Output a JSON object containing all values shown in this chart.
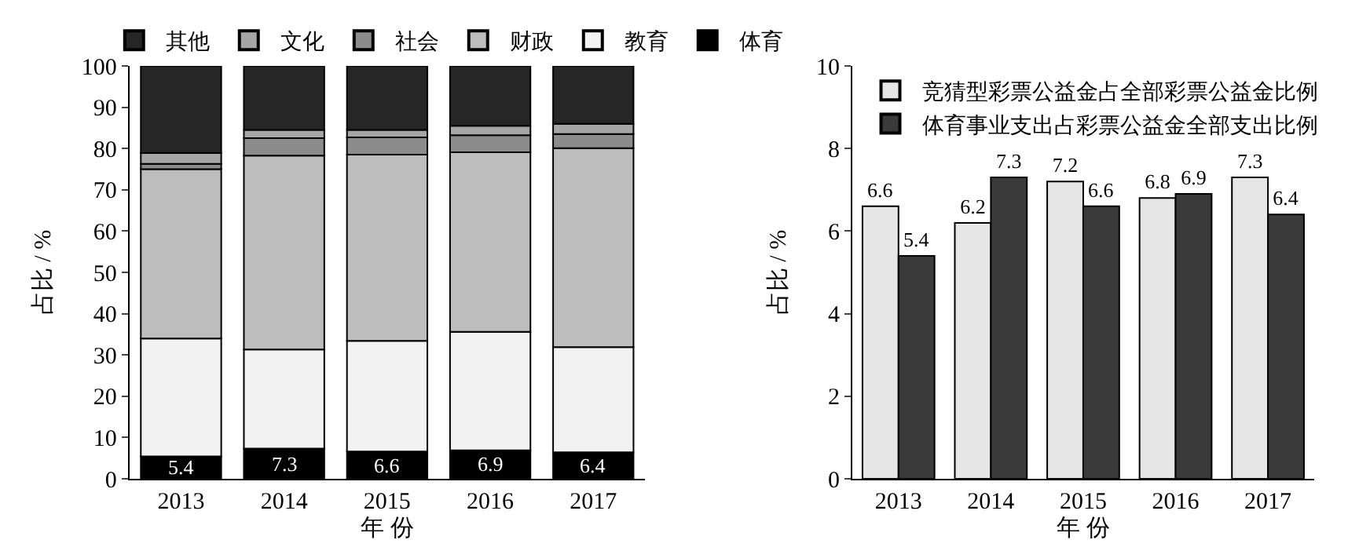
{
  "chart_data": [
    {
      "type": "bar",
      "stacked": true,
      "ylabel": "占比 / %",
      "xlabel": "年 份",
      "categories": [
        "2013",
        "2014",
        "2015",
        "2016",
        "2017"
      ],
      "ylim": [
        0,
        100
      ],
      "yticks": [
        0,
        10,
        20,
        30,
        40,
        50,
        60,
        70,
        80,
        90,
        100
      ],
      "legend": "top",
      "series": [
        {
          "name": "体育",
          "color": "#000000",
          "values": [
            5.4,
            7.3,
            6.6,
            6.9,
            6.4
          ],
          "value_labels": [
            "5.4",
            "7.3",
            "6.6",
            "6.9",
            "6.4"
          ]
        },
        {
          "name": "教育",
          "color": "#f2f2f2",
          "values": [
            28.6,
            24.0,
            26.8,
            28.7,
            25.5
          ]
        },
        {
          "name": "财政",
          "color": "#bdbdbd",
          "values": [
            41.0,
            47.0,
            45.1,
            43.5,
            48.2
          ]
        },
        {
          "name": "社会",
          "color": "#8c8c8c",
          "values": [
            1.3,
            4.2,
            4.2,
            4.1,
            3.4
          ]
        },
        {
          "name": "文化",
          "color": "#a6a6a6",
          "values": [
            2.6,
            2.0,
            1.8,
            2.3,
            2.5
          ]
        },
        {
          "name": "其他",
          "color": "#262626",
          "values": [
            21.1,
            15.5,
            15.5,
            14.5,
            14.0
          ]
        }
      ]
    },
    {
      "type": "bar",
      "ylabel": "占比 / %",
      "xlabel": "年 份",
      "categories": [
        "2013",
        "2014",
        "2015",
        "2016",
        "2017"
      ],
      "ylim": [
        0,
        10
      ],
      "yticks": [
        0,
        2,
        4,
        6,
        8,
        10
      ],
      "legend": "top left",
      "data_labels": true,
      "series": [
        {
          "name": "竞猜型彩票公益金占全部彩票公益金比例",
          "color": "#e6e6e6",
          "values": [
            6.6,
            6.2,
            7.2,
            6.8,
            7.3
          ]
        },
        {
          "name": "体育事业支出占彩票公益金全部支出比例",
          "color": "#3a3a3a",
          "values": [
            5.4,
            7.3,
            6.6,
            6.9,
            6.4
          ]
        }
      ]
    }
  ]
}
